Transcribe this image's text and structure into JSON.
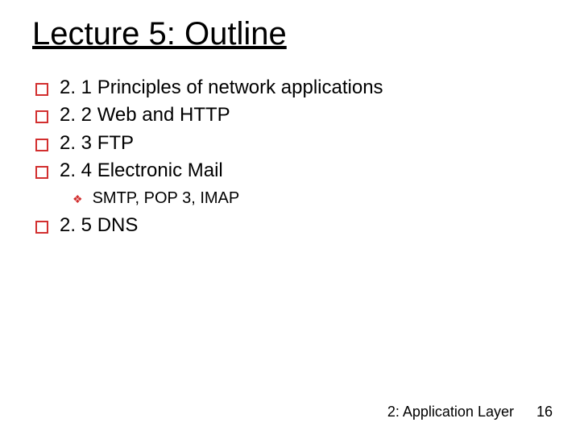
{
  "title": "Lecture 5: Outline",
  "items": [
    {
      "text": "2. 1 Principles of network applications"
    },
    {
      "text": "2. 2 Web and HTTP"
    },
    {
      "text": "2. 3 FTP"
    },
    {
      "text": "2. 4 Electronic Mail",
      "sub": [
        {
          "text": "SMTP, POP 3, IMAP"
        }
      ]
    },
    {
      "text": "2. 5 DNS"
    }
  ],
  "footer": {
    "chapter": "2: Application Layer",
    "page": "16"
  },
  "style": {
    "title_fontsize": 40,
    "l1_fontsize": 24,
    "l2_fontsize": 20,
    "bullet_color": "#d22f2f",
    "text_color": "#000000",
    "background": "#ffffff",
    "font_family": "Comic Sans MS"
  }
}
